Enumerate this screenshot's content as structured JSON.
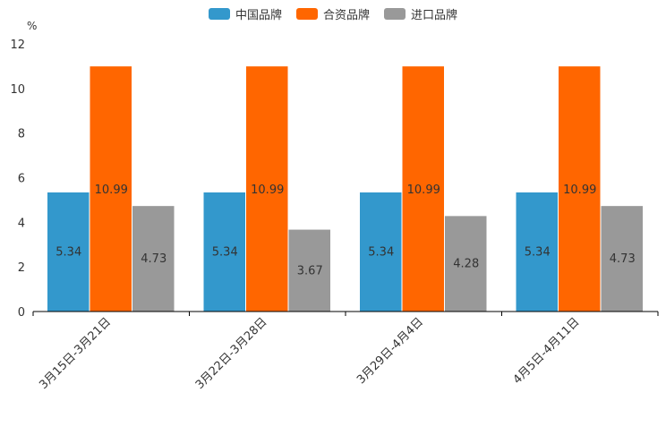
{
  "chart_data": {
    "type": "bar",
    "unit": "%",
    "categories": [
      "3月15日-3月21日",
      "3月22日-3月28日",
      "3月29日-4月4日",
      "4月5日-4月11日"
    ],
    "series": [
      {
        "name": "中国品牌",
        "color": "#3398cc",
        "values": [
          5.34,
          5.34,
          5.34,
          5.34
        ]
      },
      {
        "name": "合资品牌",
        "color": "#ff6600",
        "values": [
          10.99,
          10.99,
          10.99,
          10.99
        ]
      },
      {
        "name": "进口品牌",
        "color": "#999999",
        "values": [
          4.73,
          3.67,
          4.28,
          4.73
        ]
      }
    ],
    "ylim": [
      0,
      12
    ],
    "yticks": [
      0,
      2,
      4,
      6,
      8,
      10,
      12
    ],
    "legend_position": "top-center"
  }
}
